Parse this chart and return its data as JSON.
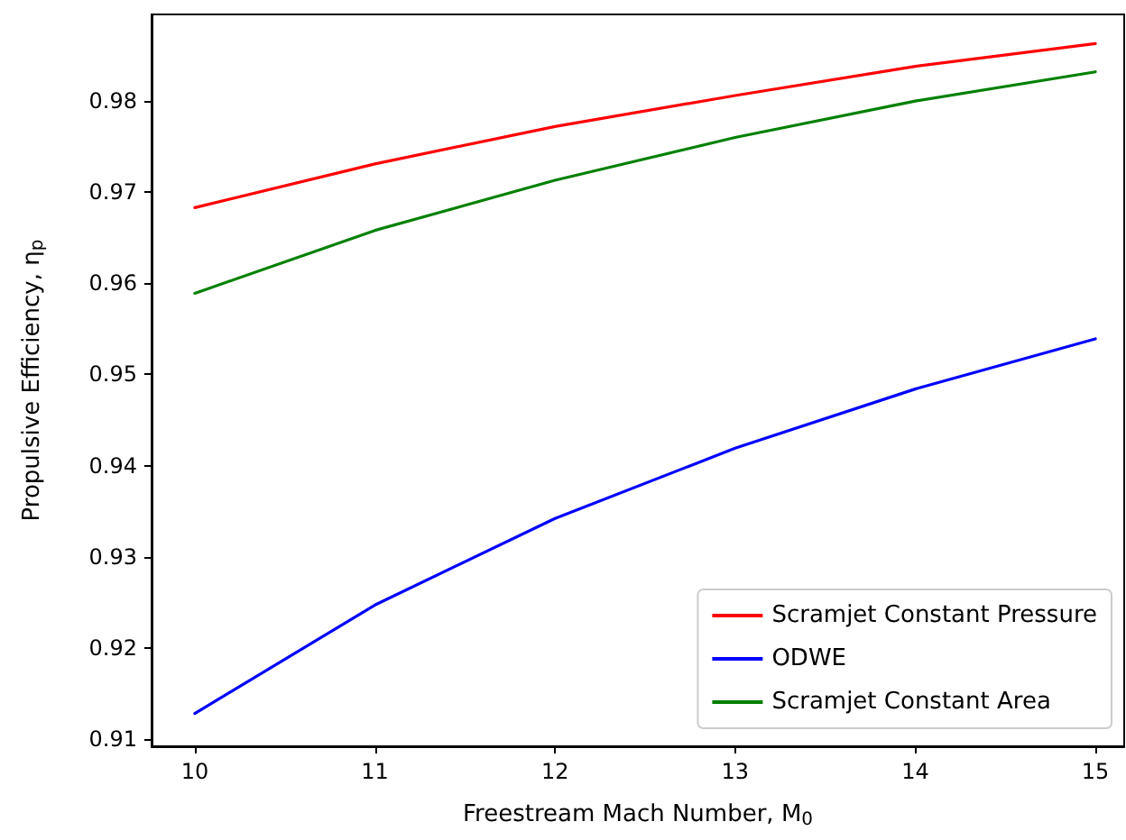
{
  "chart_data": {
    "type": "line",
    "xlabel": "Freestream Mach Number, M$_{0}$",
    "ylabel": "Propulsive Efficiency, η$_{p}$",
    "x": [
      10,
      11,
      12,
      13,
      14,
      15
    ],
    "series": [
      {
        "name": "Scramjet Constant Pressure",
        "color": "#ff0000",
        "values": [
          0.9683,
          0.9731,
          0.9772,
          0.9806,
          0.9838,
          0.9863
        ]
      },
      {
        "name": "ODWE",
        "color": "#0000ff",
        "values": [
          0.9128,
          0.9247,
          0.9342,
          0.9419,
          0.9484,
          0.9539
        ]
      },
      {
        "name": "Scramjet Constant Area",
        "color": "#008000",
        "values": [
          0.9589,
          0.9658,
          0.9713,
          0.976,
          0.98,
          0.9832
        ]
      }
    ],
    "xlim": [
      9.76,
      15.16
    ],
    "xticks": [
      10,
      11,
      12,
      13,
      14,
      15
    ],
    "ylim": [
      0.9092,
      0.9895
    ],
    "yticks": [
      0.91,
      0.92,
      0.93,
      0.94,
      0.95,
      0.96,
      0.97,
      0.98
    ],
    "grid": false,
    "legend": "bottom right",
    "marker": "none",
    "line_style": "solid"
  }
}
